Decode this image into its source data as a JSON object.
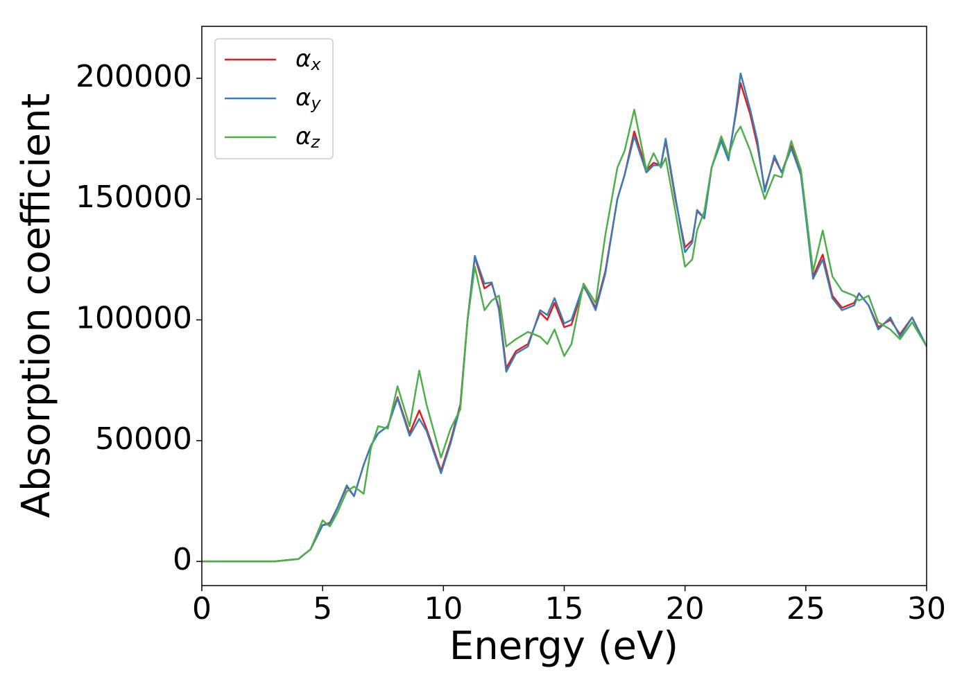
{
  "chart_data": {
    "type": "line",
    "xlabel": "Energy (eV)",
    "ylabel": "Absorption coefficient",
    "x": [
      0,
      3,
      4,
      4.5,
      5,
      5.3,
      5.6,
      6,
      6.3,
      6.7,
      7,
      7.3,
      7.7,
      8.1,
      8.6,
      9,
      9.3,
      9.9,
      10.3,
      10.7,
      11,
      11.3,
      11.7,
      12,
      12.3,
      12.6,
      13,
      13.5,
      14,
      14.3,
      14.6,
      15,
      15.3,
      15.8,
      16.3,
      16.7,
      17.2,
      17.5,
      17.9,
      18.4,
      18.7,
      19,
      19.2,
      19.6,
      20,
      20.3,
      20.5,
      20.8,
      21.1,
      21.5,
      21.8,
      22.1,
      22.3,
      22.7,
      23,
      23.3,
      23.7,
      24,
      24.4,
      24.8,
      25.3,
      25.7,
      26.1,
      26.5,
      27,
      27.2,
      27.6,
      28,
      28.5,
      28.9,
      29.4,
      30
    ],
    "series": [
      {
        "name": "αx",
        "color": "#e41a1c",
        "values": [
          0,
          0,
          1000,
          5000,
          15000,
          16000,
          22000,
          31000,
          27000,
          40000,
          48000,
          53000,
          56000,
          68000,
          53000,
          62500,
          55000,
          37500,
          50000,
          65000,
          100000,
          126000,
          113000,
          115000,
          105000,
          80000,
          87000,
          90000,
          103000,
          100000,
          107000,
          97000,
          98000,
          114000,
          105000,
          120000,
          150000,
          160000,
          178000,
          162000,
          165000,
          164000,
          174000,
          150000,
          130000,
          133000,
          145000,
          142000,
          163000,
          175000,
          167000,
          185000,
          198000,
          185000,
          172000,
          154000,
          167000,
          161000,
          172000,
          160000,
          118000,
          127000,
          110000,
          105000,
          107000,
          111000,
          106000,
          97000,
          100000,
          94000,
          101000,
          89000
        ]
      },
      {
        "name": "αy",
        "color": "#377eb8",
        "values": [
          0,
          0,
          1000,
          5000,
          15000,
          15500,
          22000,
          31500,
          27000,
          40000,
          48000,
          53000,
          56000,
          67500,
          52000,
          59000,
          54000,
          36500,
          49000,
          64000,
          100000,
          126500,
          115000,
          115500,
          104000,
          78500,
          86000,
          89000,
          104000,
          102000,
          109000,
          98500,
          100000,
          114500,
          104000,
          119000,
          150000,
          160000,
          176000,
          161000,
          164000,
          164000,
          175000,
          151000,
          128000,
          132000,
          145500,
          142000,
          163000,
          174000,
          166000,
          186000,
          202000,
          187000,
          174000,
          153000,
          168000,
          161000,
          171000,
          160000,
          117000,
          125000,
          109000,
          104000,
          106000,
          111000,
          106000,
          96000,
          101000,
          93000,
          101000,
          89000
        ]
      },
      {
        "name": "αz",
        "color": "#4daf4a",
        "values": [
          0,
          0,
          1000,
          5000,
          17000,
          14500,
          20000,
          29000,
          31000,
          28000,
          47000,
          56000,
          55000,
          72500,
          56000,
          79000,
          65000,
          43000,
          55000,
          63000,
          100000,
          122000,
          104000,
          108000,
          110000,
          89000,
          92000,
          95000,
          93000,
          90000,
          96000,
          85000,
          90000,
          115000,
          107000,
          135000,
          163000,
          170000,
          187000,
          162000,
          169000,
          163000,
          167000,
          145000,
          122000,
          125000,
          137000,
          145000,
          163000,
          176000,
          168000,
          177000,
          180000,
          170000,
          160000,
          150000,
          160000,
          159000,
          174000,
          162000,
          120000,
          137000,
          118000,
          112000,
          110000,
          108000,
          110000,
          99000,
          96000,
          92000,
          99000,
          89000
        ]
      }
    ],
    "xlim": [
      0,
      30
    ],
    "xticks": [
      0,
      5,
      10,
      15,
      20,
      25,
      30
    ],
    "ylim": [
      -10000,
      221500
    ],
    "yticks": [
      0,
      50000,
      100000,
      150000,
      200000
    ],
    "legend": "upper left"
  }
}
